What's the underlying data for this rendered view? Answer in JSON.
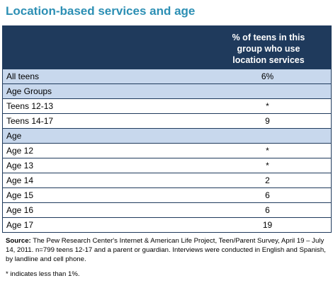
{
  "title": "Location-based services and age",
  "chart_data": {
    "type": "table",
    "column_header": "% of teens in this group who use location services",
    "rows": [
      {
        "label": "All teens",
        "value": "6%",
        "kind": "group"
      },
      {
        "label": "Age Groups",
        "value": "",
        "kind": "section"
      },
      {
        "label": "Teens 12-13",
        "value": "*",
        "kind": "item"
      },
      {
        "label": "Teens 14-17",
        "value": "9",
        "kind": "item"
      },
      {
        "label": "Age",
        "value": "",
        "kind": "section"
      },
      {
        "label": "Age 12",
        "value": "*",
        "kind": "item"
      },
      {
        "label": "Age 13",
        "value": "*",
        "kind": "item"
      },
      {
        "label": "Age 14",
        "value": "2",
        "kind": "item"
      },
      {
        "label": "Age 15",
        "value": "6",
        "kind": "item"
      },
      {
        "label": "Age 16",
        "value": "6",
        "kind": "item"
      },
      {
        "label": "Age 17",
        "value": "19",
        "kind": "item"
      }
    ]
  },
  "source_label": "Source:",
  "source_text": " The Pew Research Center's Internet & American Life Project, Teen/Parent Survey, April 19 – July 14, 2011. n=799 teens 12-17 and a parent or guardian. Interviews were conducted in English and Spanish, by landline and cell phone.",
  "note": "* indicates less than 1%.",
  "colors": {
    "header_bg": "#1f3a5c",
    "shaded_row": "#c8d8ed",
    "title": "#2c8fb4"
  }
}
